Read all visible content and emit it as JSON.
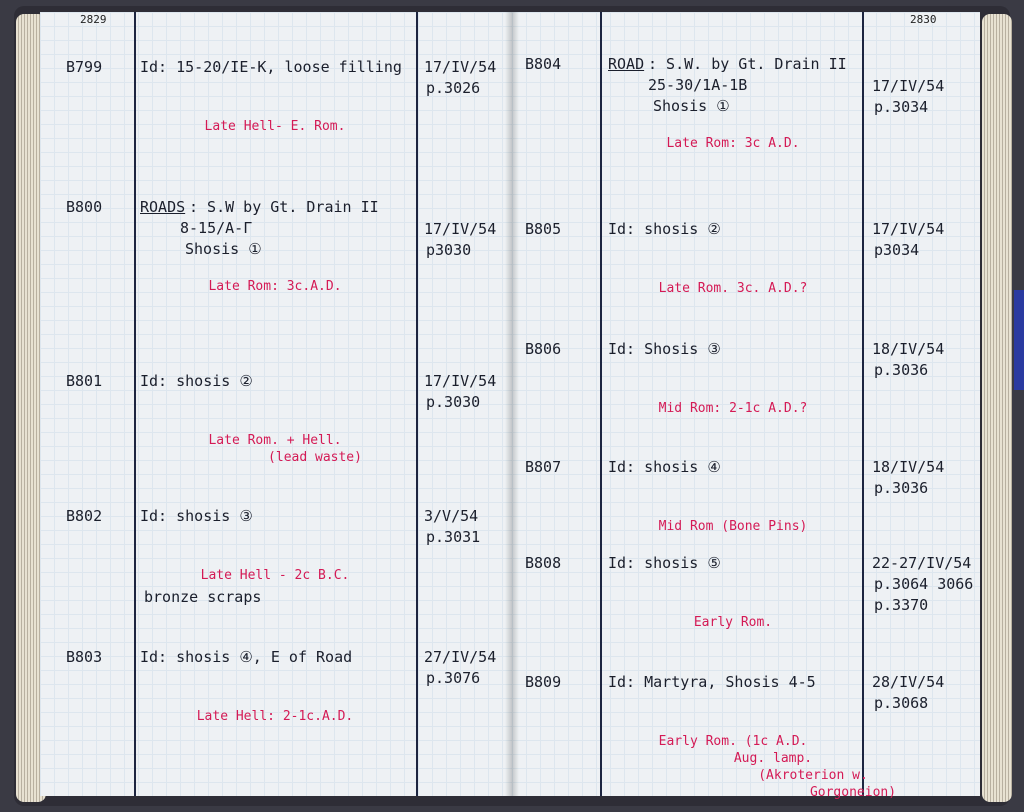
{
  "left_page": {
    "page_number": "2829",
    "entries": [
      {
        "id": "B799",
        "lines": [
          "Id: 15-20/IE-K, loose filling"
        ],
        "dating": [
          "Late Hell- E. Rom."
        ],
        "date": "17/IV/54",
        "ref": [
          "p.3026"
        ]
      },
      {
        "id": "B800",
        "heading": "ROADS",
        "lines": [
          ": S.W by Gt. Drain II",
          "8-15/A-Γ",
          "Shosis ①"
        ],
        "dating": [
          "Late Rom: 3c.A.D."
        ],
        "date": "17/IV/54",
        "ref": [
          "p3030"
        ]
      },
      {
        "id": "B801",
        "lines": [
          "Id: shosis ②"
        ],
        "dating": [
          "Late Rom. + Hell.",
          "(lead waste)"
        ],
        "date": "17/IV/54",
        "ref": [
          "p.3030"
        ]
      },
      {
        "id": "B802",
        "lines": [
          "Id: shosis ③"
        ],
        "dating": [
          "Late Hell - 2c B.C."
        ],
        "extra": "bronze scraps",
        "date": "3/V/54",
        "ref": [
          "p.3031"
        ]
      },
      {
        "id": "B803",
        "lines": [
          "Id: shosis ④, E of Road"
        ],
        "dating": [
          "Late Hell: 2-1c.A.D."
        ],
        "date": "27/IV/54",
        "ref": [
          "p.3076"
        ]
      }
    ]
  },
  "right_page": {
    "page_number": "2830",
    "entries": [
      {
        "id": "B804",
        "heading": "ROAD",
        "lines": [
          ": S.W. by Gt. Drain II",
          "25-30/1A-1B",
          "Shosis ①"
        ],
        "dating": [
          "Late Rom: 3c A.D."
        ],
        "date": "17/IV/54",
        "ref": [
          "p.3034"
        ]
      },
      {
        "id": "B805",
        "lines": [
          "Id: shosis ②"
        ],
        "dating": [
          "Late Rom. 3c. A.D.?"
        ],
        "date": "17/IV/54",
        "ref": [
          "p3034"
        ]
      },
      {
        "id": "B806",
        "lines": [
          "Id: Shosis ③"
        ],
        "dating": [
          "Mid Rom: 2-1c A.D.?"
        ],
        "date": "18/IV/54",
        "ref": [
          "p.3036"
        ]
      },
      {
        "id": "B807",
        "lines": [
          "Id: shosis ④"
        ],
        "dating": [
          "Mid Rom (Bone Pins)"
        ],
        "date": "18/IV/54",
        "ref": [
          "p.3036"
        ]
      },
      {
        "id": "B808",
        "lines": [
          "Id: shosis ⑤"
        ],
        "dating": [
          "Early Rom."
        ],
        "date": "22-27/IV/54",
        "ref": [
          "p.3064 3066",
          "p.3370"
        ]
      },
      {
        "id": "B809",
        "lines": [
          "Id: Martyra, Shosis 4-5"
        ],
        "dating": [
          "Early Rom. (1c A.D.",
          "Aug. lamp.",
          "(Akroterion w.",
          "Gorgoneion)"
        ],
        "date": "28/IV/54",
        "ref": [
          "p.3068"
        ]
      }
    ]
  },
  "colors": {
    "ink": "#1b1f2c",
    "red_ink": "#d41a55",
    "paper": "#eef1f4",
    "rule": "#1d2540"
  }
}
